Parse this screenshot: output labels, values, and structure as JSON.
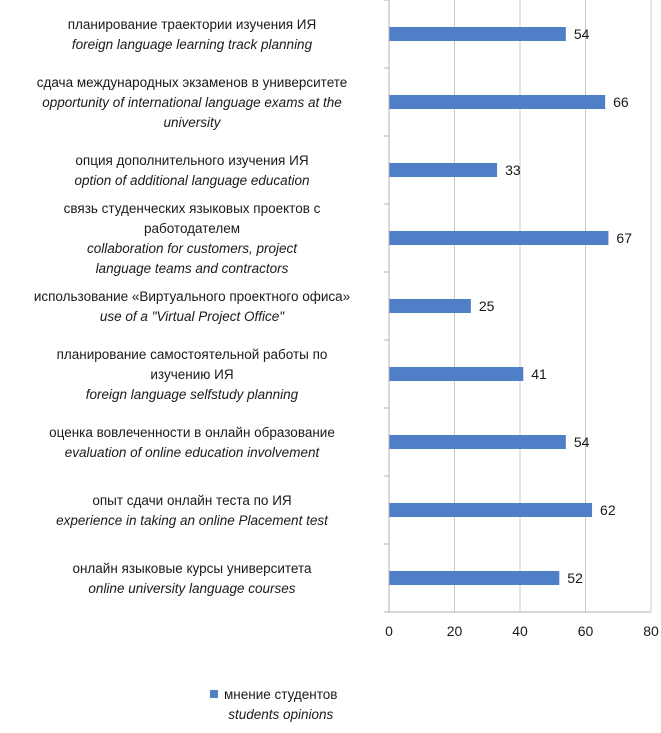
{
  "chart_data": {
    "type": "bar",
    "orientation": "horizontal",
    "categories": [
      {
        "lines_ru": [
          "планирование траектории изучения ИЯ"
        ],
        "lines_en": [
          "foreign language learning track planning"
        ]
      },
      {
        "lines_ru": [
          "сдача международных экзаменов в университете"
        ],
        "lines_en": [
          "opportunity of international language exams at the",
          "university"
        ]
      },
      {
        "lines_ru": [
          "опция дополнительного изучения ИЯ"
        ],
        "lines_en": [
          "option of additional language education"
        ]
      },
      {
        "lines_ru": [
          "связь студенческих языковых проектов с",
          "работодателем"
        ],
        "lines_en": [
          "collaboration for customers, project",
          "language teams and contractors"
        ]
      },
      {
        "lines_ru": [
          "использование «Виртуального проектного офиса»"
        ],
        "lines_en": [
          "use of a \"Virtual Project Office\""
        ]
      },
      {
        "lines_ru": [
          "планирование самостоятельной работы по",
          "изучению ИЯ"
        ],
        "lines_en": [
          "foreign language selfstudy planning"
        ]
      },
      {
        "lines_ru": [
          "оценка вовлеченности в онлайн образование"
        ],
        "lines_en": [
          "evaluation of online education involvement"
        ]
      },
      {
        "lines_ru": [
          "опыт сдачи онлайн теста по ИЯ"
        ],
        "lines_en": [
          "experience in taking an online Placement test"
        ]
      },
      {
        "lines_ru": [
          "онлайн языковые курсы университета"
        ],
        "lines_en": [
          "online university language courses"
        ]
      }
    ],
    "series": [
      {
        "name": "мнение студентов",
        "name_en": "students opinions",
        "color": "#4f7fc6",
        "values": [
          54,
          66,
          33,
          67,
          25,
          41,
          54,
          62,
          52
        ]
      }
    ],
    "xlim": [
      0,
      80
    ],
    "xticks": [
      0,
      20,
      40,
      60,
      80
    ],
    "grid": true,
    "legend_position": "bottom"
  }
}
